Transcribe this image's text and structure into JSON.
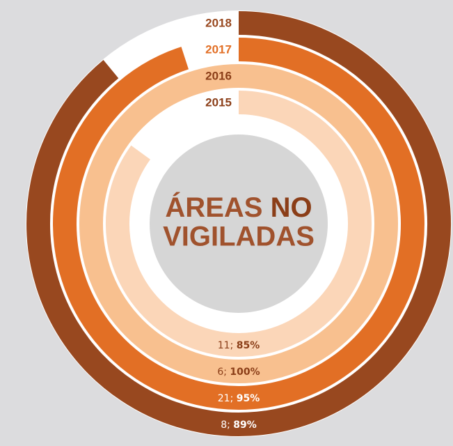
{
  "chart_data": {
    "type": "radial_bar",
    "title_parts": [
      "ÁREAS",
      "NO",
      "VIGILADAS"
    ],
    "label_separator": ";",
    "ylim": [
      0,
      100
    ],
    "series": [
      {
        "name": "2018",
        "color": "#98481f",
        "count": 8,
        "value": 89,
        "value_label": "89%"
      },
      {
        "name": "2017",
        "color": "#e26f25",
        "count": 21,
        "value": 95,
        "value_label": "95%"
      },
      {
        "name": "2016",
        "color": "#f8c08f",
        "count": 6,
        "value": 100,
        "value_label": "100%"
      },
      {
        "name": "2015",
        "color": "#fbd6b8",
        "count": 11,
        "value": 85,
        "value_label": "85%"
      }
    ]
  }
}
